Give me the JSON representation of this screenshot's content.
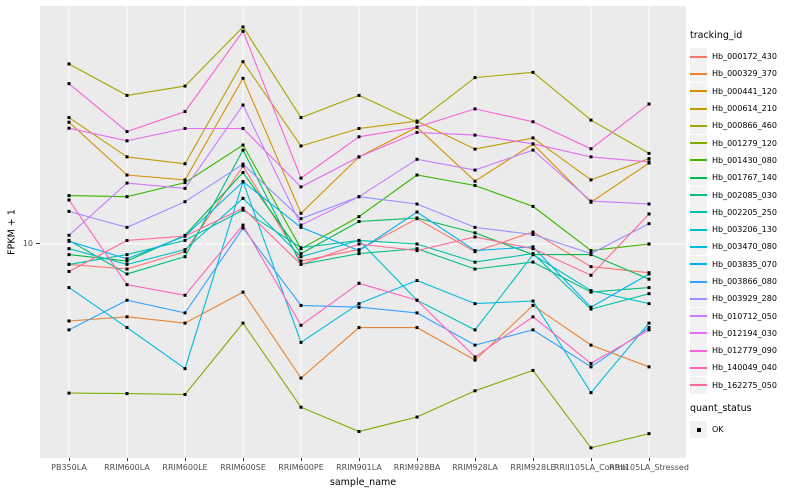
{
  "figure": {
    "background": "#FFFFFF"
  },
  "panel": {
    "background": "#EBEBEB",
    "grid_color": "#FFFFFF"
  },
  "axes": {
    "tick_mark_color": "#333333",
    "tick_label_color": "#4D4D4D",
    "title_color": "#000000",
    "y_tick_label": "10"
  },
  "legend": {
    "tracking_title": "tracking_id",
    "quant_title": "quant_status",
    "quant_value": "OK",
    "key_background": "#F2F2F2",
    "point_marker": "filled-black-square"
  },
  "chart_data": {
    "type": "line",
    "title": "",
    "xlabel": "sample_name",
    "ylabel": "FPKM + 1",
    "y_scale": "log10",
    "y_ticks": [
      10
    ],
    "ylim": [
      0.96,
      136
    ],
    "grid": "major-only",
    "legend_position": "right",
    "point_shape": "filled-square",
    "point_color": "#000000",
    "categories": [
      "PB350LA",
      "RRIM600LA",
      "RRIM600LE",
      "RRIM600SE",
      "RRIM600PE",
      "RRIM901LA",
      "RRIM928BA",
      "RRIM928LA",
      "RRIM928LE",
      "RRII105LA_Control",
      "RRII105LA_Stressed"
    ],
    "series": [
      {
        "name": "Hb_000172_430",
        "color": "#F8766D",
        "values": [
          8.0,
          7.6,
          9.2,
          23.5,
          8.3,
          9.4,
          13.2,
          9.2,
          11.4,
          7.8,
          7.3
        ]
      },
      {
        "name": "Hb_000329_370",
        "color": "#EA8331",
        "values": [
          4.3,
          4.5,
          4.2,
          5.9,
          2.3,
          4.0,
          4.0,
          2.8,
          5.1,
          3.3,
          2.6
        ]
      },
      {
        "name": "Hb_000441_120",
        "color": "#D89000",
        "values": [
          38,
          21.3,
          20.2,
          61.5,
          14.0,
          26,
          36,
          19.9,
          29.9,
          15.8,
          24.3
        ]
      },
      {
        "name": "Hb_000614_210",
        "color": "#C09B00",
        "values": [
          40,
          26,
          24.1,
          73.8,
          29.3,
          35.5,
          38.5,
          28.3,
          32,
          20.2,
          25.5
        ]
      },
      {
        "name": "Hb_000866_460",
        "color": "#A3A500",
        "values": [
          72,
          51,
          56.5,
          108,
          40,
          51,
          38,
          62,
          65.7,
          38.9,
          27
        ]
      },
      {
        "name": "Hb_001279_120",
        "color": "#7CAE00",
        "values": [
          1.95,
          1.94,
          1.92,
          4.2,
          1.67,
          1.28,
          1.5,
          2.0,
          2.5,
          1.07,
          1.25
        ]
      },
      {
        "name": "Hb_001430_080",
        "color": "#39B600",
        "values": [
          17,
          16.8,
          19.6,
          29.6,
          9.5,
          13.5,
          21.3,
          19,
          15.1,
          9.3,
          10.0
        ]
      },
      {
        "name": "Hb_001767_140",
        "color": "#00BB4E",
        "values": [
          8.9,
          8.3,
          11.0,
          21.9,
          9.0,
          12.8,
          13.3,
          11.3,
          8.9,
          8.9,
          6.8
        ]
      },
      {
        "name": "Hb_002085_030",
        "color": "#00BF7D",
        "values": [
          10.4,
          7.2,
          8.7,
          28,
          8.0,
          9.0,
          9.5,
          7.6,
          8.2,
          5.9,
          6.2
        ]
      },
      {
        "name": "Hb_002205_250",
        "color": "#00C1A3",
        "values": [
          8.0,
          8.9,
          10.4,
          14.5,
          9.6,
          10.4,
          10.0,
          8.2,
          9.0,
          4.9,
          5.8
        ]
      },
      {
        "name": "Hb_003206_130",
        "color": "#00BFC4",
        "values": [
          9.5,
          8.0,
          9.4,
          16.5,
          8.7,
          10.4,
          5.4,
          3.9,
          8.9,
          6.0,
          5.2
        ]
      },
      {
        "name": "Hb_003470_080",
        "color": "#00BAE0",
        "values": [
          6.2,
          4.0,
          2.55,
          19.8,
          3.4,
          5.2,
          6.7,
          5.2,
          5.35,
          1.96,
          4.2
        ]
      },
      {
        "name": "Hb_003835_070",
        "color": "#00B0F6",
        "values": [
          10.3,
          8.5,
          10.9,
          19.8,
          12.0,
          9.3,
          14.2,
          9.3,
          9.7,
          5.0,
          7.2
        ]
      },
      {
        "name": "Hb_003866_080",
        "color": "#35A2FF",
        "values": [
          3.9,
          5.4,
          4.7,
          11.9,
          5.1,
          5.0,
          4.7,
          3.3,
          3.9,
          2.6,
          4.0
        ]
      },
      {
        "name": "Hb_003929_280",
        "color": "#9590FF",
        "values": [
          14.3,
          12.0,
          15.9,
          24,
          13.2,
          16.8,
          15.5,
          12.0,
          11.1,
          9.0,
          12.5
        ]
      },
      {
        "name": "Hb_010712_050",
        "color": "#C77CFF",
        "values": [
          11.0,
          19.5,
          18.4,
          45.9,
          12.3,
          16.8,
          25.3,
          22.5,
          28,
          16.0,
          15.5
        ]
      },
      {
        "name": "Hb_012194_030",
        "color": "#E76BF3",
        "values": [
          35.6,
          31,
          35.5,
          35.5,
          18.7,
          26,
          34,
          33,
          30,
          26,
          24.6
        ]
      },
      {
        "name": "Hb_012779_090",
        "color": "#FA62DB",
        "values": [
          58,
          34.3,
          42.7,
          103,
          20.6,
          32.4,
          36,
          44,
          38.2,
          28.4,
          46.4
        ]
      },
      {
        "name": "Hb_140049_040",
        "color": "#FF62BC",
        "values": [
          16.2,
          6.4,
          5.7,
          12.3,
          4.1,
          6.5,
          5.4,
          2.9,
          4.5,
          2.7,
          3.9
        ]
      },
      {
        "name": "Hb_162275_050",
        "color": "#FF6A98",
        "values": [
          7.4,
          10.4,
          10.9,
          14.8,
          8.0,
          10.0,
          9.3,
          10.8,
          9.5,
          7.1,
          13.9
        ]
      }
    ]
  }
}
